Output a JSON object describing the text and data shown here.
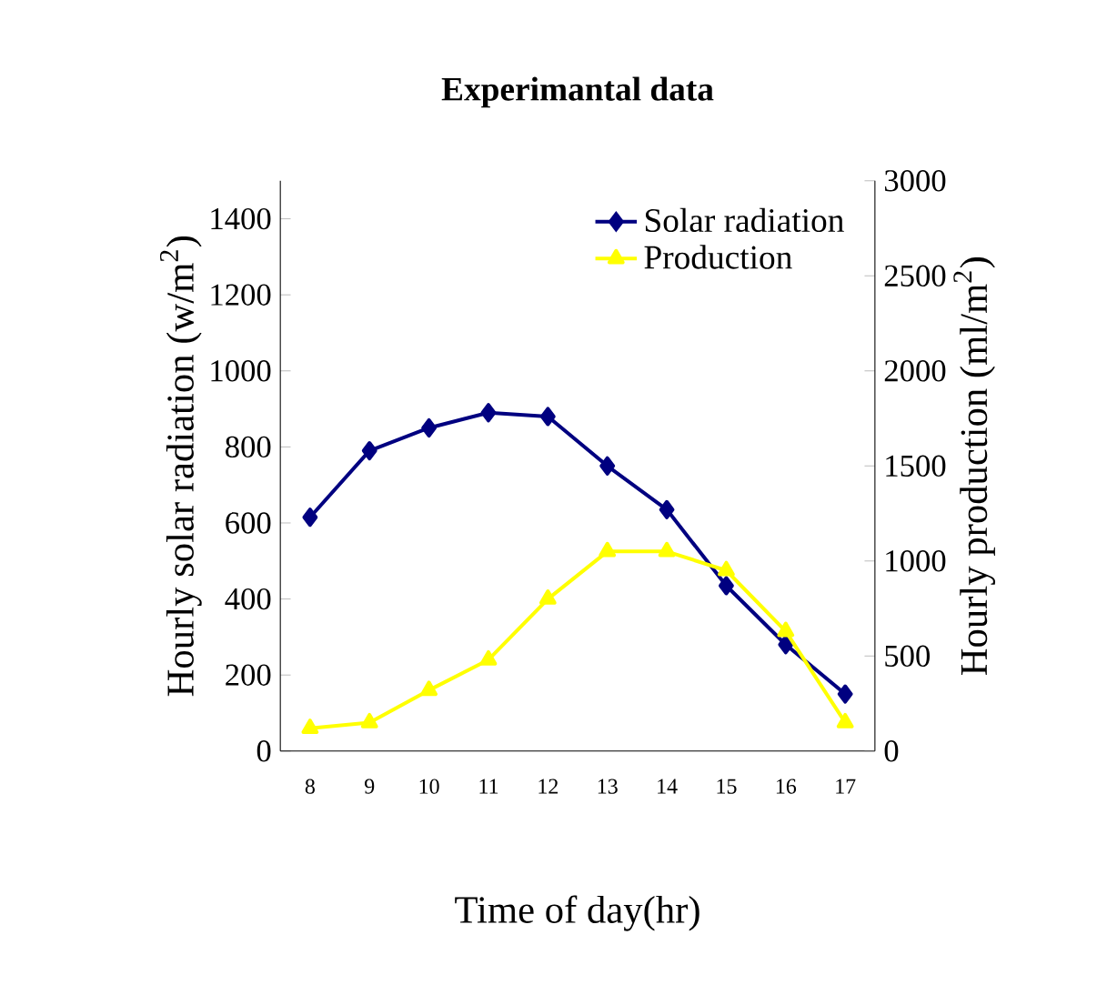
{
  "chart_data": {
    "type": "line",
    "title": "Experimantal data",
    "xlabel": "Time of day(hr)",
    "ylabel": "Hourly solar radiation (w/m$^{2}$)",
    "y2label": "Hourly production (ml/m$^{2}$)",
    "categories": [
      "8",
      "9",
      "10",
      "11",
      "12",
      "13",
      "14",
      "15",
      "16",
      "17"
    ],
    "series": [
      {
        "name": "Solar radiation",
        "color": "#000080",
        "marker": "diamond",
        "values": [
          615,
          790,
          850,
          890,
          880,
          750,
          635,
          435,
          280,
          150
        ]
      },
      {
        "name": "Production",
        "color": "#ffff00",
        "marker": "triangle",
        "axis": "y2",
        "values": [
          120,
          150,
          320,
          480,
          800,
          1050,
          1050,
          950,
          630,
          150
        ]
      }
    ],
    "ylim": [
      0,
      1500
    ],
    "yticks": [
      0,
      200,
      400,
      600,
      800,
      1000,
      1200,
      1400
    ],
    "y2lim": [
      0,
      3000
    ],
    "y2ticks": [
      0,
      500,
      1000,
      1500,
      2000,
      2500,
      3000
    ],
    "legend": "top right",
    "grid": false,
    "line_style": "solid"
  }
}
